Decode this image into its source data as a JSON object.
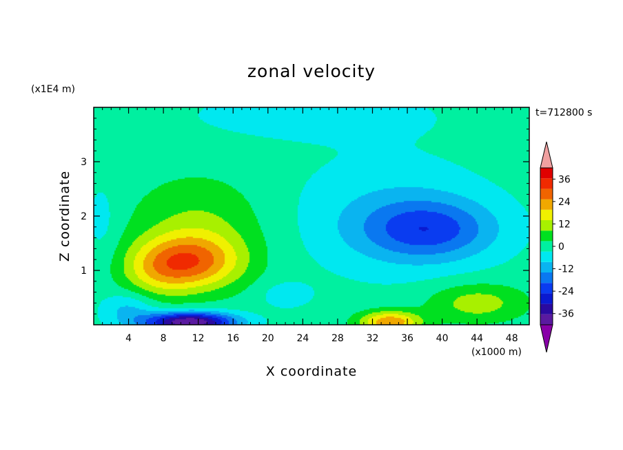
{
  "chart_data": {
    "type": "heatmap",
    "title": "zonal velocity",
    "xlabel": "X coordinate",
    "ylabel": "Z coordinate",
    "x_unit": "(x1000 m)",
    "y_unit": "(x1E4 m)",
    "time_label": "t=712800 s",
    "xlim": [
      0,
      50
    ],
    "ylim": [
      0,
      4
    ],
    "x_ticks": [
      "4",
      "8",
      "12",
      "16",
      "20",
      "24",
      "28",
      "32",
      "36",
      "40",
      "44",
      "48"
    ],
    "x_tick_values": [
      4,
      8,
      12,
      16,
      20,
      24,
      28,
      32,
      36,
      40,
      44,
      48
    ],
    "y_ticks": [
      "1",
      "2",
      "3"
    ],
    "y_tick_values": [
      1,
      2,
      3
    ],
    "colorbar": {
      "tick_labels": [
        "36",
        "24",
        "12",
        "0",
        "-12",
        "-24",
        "-36"
      ],
      "tick_values": [
        36,
        24,
        12,
        0,
        -12,
        -24,
        -36
      ],
      "levels": [
        -42,
        -36,
        -30,
        -24,
        -18,
        -12,
        -6,
        0,
        6,
        12,
        18,
        24,
        30,
        36,
        42
      ],
      "colors": [
        "#5a1aa0",
        "#2a0aa0",
        "#0a1ad0",
        "#0a3cf0",
        "#0a78f0",
        "#0ab4f0",
        "#00e8f0",
        "#00f0a0",
        "#00e020",
        "#a8f000",
        "#f0f000",
        "#f0a800",
        "#f06400",
        "#f02a00",
        "#e00000"
      ],
      "under_color": "#8800a8",
      "over_color": "#f0a0a0"
    },
    "features": [
      {
        "kind": "max",
        "x": 11,
        "z": 1.15,
        "amp": 27,
        "sx": 5.8,
        "sz": 0.5
      },
      {
        "kind": "max",
        "x": 12,
        "z": 1.8,
        "amp": 10,
        "sx": 7.5,
        "sz": 0.9
      },
      {
        "kind": "max",
        "x": 7,
        "z": 0.95,
        "amp": 9,
        "sx": 4.0,
        "sz": 0.5
      },
      {
        "kind": "min",
        "x": 11,
        "z": 0.05,
        "amp": -45,
        "sx": 5.2,
        "sz": 0.18
      },
      {
        "kind": "min",
        "x": 4,
        "z": 0.3,
        "amp": -10,
        "sx": 3.0,
        "sz": 0.3
      },
      {
        "kind": "max",
        "x": 34,
        "z": 0.05,
        "amp": 27,
        "sx": 3.5,
        "sz": 0.2
      },
      {
        "kind": "max",
        "x": 44,
        "z": 0.4,
        "amp": 13,
        "sx": 5.5,
        "sz": 0.35
      },
      {
        "kind": "min",
        "x": 38.5,
        "z": 1.75,
        "amp": -20,
        "sx": 7.5,
        "sz": 0.55
      },
      {
        "kind": "min",
        "x": 34,
        "z": 2.0,
        "amp": -8,
        "sx": 11.0,
        "sz": 1.1
      },
      {
        "kind": "min",
        "x": 22,
        "z": 0.55,
        "amp": -6,
        "sx": 3.0,
        "sz": 0.25
      },
      {
        "kind": "min",
        "x": 25,
        "z": 3.85,
        "amp": -6,
        "sx": 14.0,
        "sz": 0.45
      },
      {
        "kind": "min",
        "x": 1,
        "z": 1.9,
        "amp": -5,
        "sx": 2.0,
        "sz": 0.8
      }
    ]
  }
}
